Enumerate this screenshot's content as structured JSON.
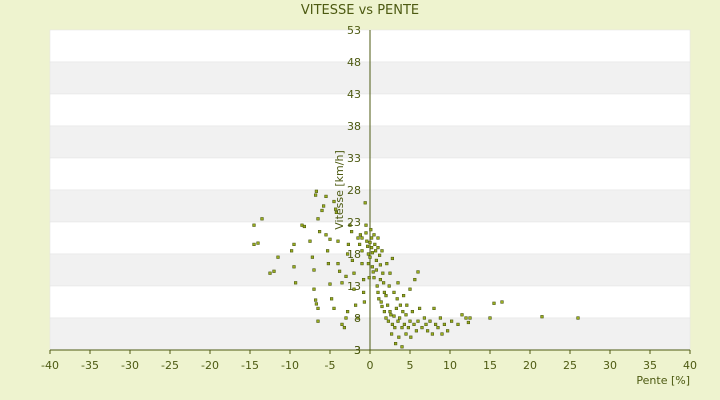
{
  "chart_data": {
    "type": "scatter",
    "title": "VITESSE vs PENTE",
    "xlabel": "Pente [%]",
    "ylabel": "Vitesse [km/h]",
    "xlim": [
      -40,
      40
    ],
    "ylim": [
      3,
      53
    ],
    "xticks": [
      "-40",
      "-35",
      "-30",
      "-25",
      "-20",
      "-15",
      "-10",
      "-5",
      "0",
      "5",
      "10",
      "15",
      "20",
      "25",
      "30",
      "35",
      "40"
    ],
    "yticks": [
      "3",
      "3",
      "8",
      "13",
      "18",
      "23",
      "28",
      "33",
      "38",
      "43",
      "48",
      "53"
    ],
    "grid": "alternating horizontal bands",
    "colors": {
      "background": "#eef3cf",
      "band_white": "#ffffff",
      "band_gray": "#f1f1f1",
      "axis": "#4d5a12",
      "point_fill": "#9aae1e",
      "point_stroke": "#4d5a12",
      "text": "#4d5a12"
    },
    "series": [
      {
        "points": [
          [
            -14.5,
            22.5
          ],
          [
            -13.5,
            23.5
          ],
          [
            -14.5,
            19.5
          ],
          [
            -14,
            19.7
          ],
          [
            -12.5,
            15
          ],
          [
            -12,
            15.3
          ],
          [
            -11.5,
            17.5
          ],
          [
            -9.8,
            18.5
          ],
          [
            -9.5,
            19.5
          ],
          [
            -9.3,
            13.5
          ],
          [
            -9.5,
            16
          ],
          [
            -8.5,
            22.5
          ],
          [
            -8.2,
            22.3
          ],
          [
            -7.5,
            20
          ],
          [
            -7.2,
            17.5
          ],
          [
            -7,
            15.5
          ],
          [
            -7,
            12.5
          ],
          [
            -6.8,
            10.8
          ],
          [
            -6.7,
            10.2
          ],
          [
            -6.5,
            9.5
          ],
          [
            -6.5,
            7.5
          ],
          [
            -6.7,
            27.8
          ],
          [
            -6.8,
            27.2
          ],
          [
            -6.5,
            23.5
          ],
          [
            -6.3,
            21.5
          ],
          [
            -6,
            24.8
          ],
          [
            -5.8,
            25.5
          ],
          [
            -5.5,
            27
          ],
          [
            -5.5,
            21
          ],
          [
            -5.3,
            18.5
          ],
          [
            -5,
            20.3
          ],
          [
            -5.2,
            16.5
          ],
          [
            -5,
            13.3
          ],
          [
            -4.8,
            11
          ],
          [
            -4.5,
            9.5
          ],
          [
            -4.5,
            26.2
          ],
          [
            -4.3,
            25
          ],
          [
            -4.2,
            24.5
          ],
          [
            -4,
            20
          ],
          [
            -4,
            16.5
          ],
          [
            -3.8,
            15.3
          ],
          [
            -3.5,
            13.5
          ],
          [
            -3.5,
            7
          ],
          [
            -3.2,
            6.5
          ],
          [
            -3,
            8
          ],
          [
            -2.8,
            9
          ],
          [
            -3,
            14.5
          ],
          [
            -2.8,
            18
          ],
          [
            -2.7,
            19.5
          ],
          [
            -2.5,
            22.5
          ],
          [
            -2.3,
            21.5
          ],
          [
            -2.2,
            17
          ],
          [
            -2,
            15
          ],
          [
            -2,
            12.5
          ],
          [
            -1.8,
            10
          ],
          [
            -1.5,
            8
          ],
          [
            -1.5,
            20.5
          ],
          [
            -1.3,
            19.5
          ],
          [
            -1.2,
            21
          ],
          [
            -1,
            20.5
          ],
          [
            -1,
            18.5
          ],
          [
            -1,
            16.5
          ],
          [
            -0.8,
            14
          ],
          [
            -0.8,
            12
          ],
          [
            -0.7,
            10.5
          ],
          [
            -0.6,
            26
          ],
          [
            -0.5,
            22.5
          ],
          [
            -0.5,
            21.3
          ],
          [
            -0.4,
            20
          ],
          [
            -0.3,
            19.2
          ],
          [
            -0.2,
            18
          ],
          [
            -0.2,
            16.5
          ],
          [
            -0.1,
            14.3
          ],
          [
            0,
            19.8
          ],
          [
            0,
            17.5
          ],
          [
            0.1,
            21.8
          ],
          [
            0.2,
            20.5
          ],
          [
            0.2,
            19
          ],
          [
            0.3,
            18.2
          ],
          [
            0.3,
            16
          ],
          [
            0.4,
            15.2
          ],
          [
            0.5,
            14.3
          ],
          [
            0.5,
            21
          ],
          [
            0.6,
            19.5
          ],
          [
            0.7,
            18.5
          ],
          [
            0.8,
            17
          ],
          [
            0.8,
            15.5
          ],
          [
            0.9,
            13
          ],
          [
            1,
            20.5
          ],
          [
            1,
            19
          ],
          [
            1,
            12
          ],
          [
            1.1,
            11
          ],
          [
            1.2,
            17.8
          ],
          [
            1.3,
            16.3
          ],
          [
            1.3,
            14
          ],
          [
            1.4,
            10.5
          ],
          [
            1.5,
            9.8
          ],
          [
            1.5,
            18.5
          ],
          [
            1.6,
            15
          ],
          [
            1.7,
            13.5
          ],
          [
            1.8,
            12
          ],
          [
            1.8,
            9
          ],
          [
            2,
            8
          ],
          [
            2,
            11.5
          ],
          [
            2.1,
            16.5
          ],
          [
            2.2,
            10
          ],
          [
            2.3,
            7.5
          ],
          [
            2.4,
            13
          ],
          [
            2.5,
            15
          ],
          [
            2.5,
            9
          ],
          [
            2.6,
            8.5
          ],
          [
            2.7,
            5.5
          ],
          [
            2.8,
            7
          ],
          [
            2.8,
            17.3
          ],
          [
            3,
            12
          ],
          [
            3,
            8.3
          ],
          [
            3.1,
            6.5
          ],
          [
            3.2,
            4
          ],
          [
            3.3,
            9.5
          ],
          [
            3.4,
            11
          ],
          [
            3.5,
            7.5
          ],
          [
            3.5,
            13.5
          ],
          [
            3.6,
            5
          ],
          [
            3.7,
            8
          ],
          [
            3.8,
            10
          ],
          [
            4,
            6.5
          ],
          [
            4,
            3.5
          ],
          [
            4.1,
            9
          ],
          [
            4.2,
            11.5
          ],
          [
            4.3,
            7
          ],
          [
            4.5,
            5.5
          ],
          [
            4.5,
            8.5
          ],
          [
            4.6,
            10
          ],
          [
            4.8,
            6.5
          ],
          [
            5,
            7.5
          ],
          [
            5,
            12.5
          ],
          [
            5.1,
            5
          ],
          [
            5.3,
            9
          ],
          [
            5.5,
            7
          ],
          [
            5.6,
            14
          ],
          [
            5.8,
            6
          ],
          [
            6,
            7.5
          ],
          [
            6,
            15.2
          ],
          [
            6.2,
            9.5
          ],
          [
            6.5,
            6.5
          ],
          [
            6.8,
            8
          ],
          [
            7,
            7
          ],
          [
            7.2,
            6
          ],
          [
            7.5,
            7.5
          ],
          [
            7.8,
            5.5
          ],
          [
            8,
            9.5
          ],
          [
            8.2,
            7
          ],
          [
            8.5,
            6.5
          ],
          [
            8.8,
            8
          ],
          [
            9,
            5.5
          ],
          [
            9.3,
            7
          ],
          [
            9.7,
            6
          ],
          [
            10.2,
            7.5
          ],
          [
            11,
            7
          ],
          [
            11.5,
            8.5
          ],
          [
            12,
            8
          ],
          [
            12.3,
            7.3
          ],
          [
            12.5,
            8
          ],
          [
            15,
            8
          ],
          [
            15.5,
            10.3
          ],
          [
            16.5,
            10.5
          ],
          [
            21.5,
            8.2
          ],
          [
            26,
            8
          ]
        ]
      }
    ]
  }
}
